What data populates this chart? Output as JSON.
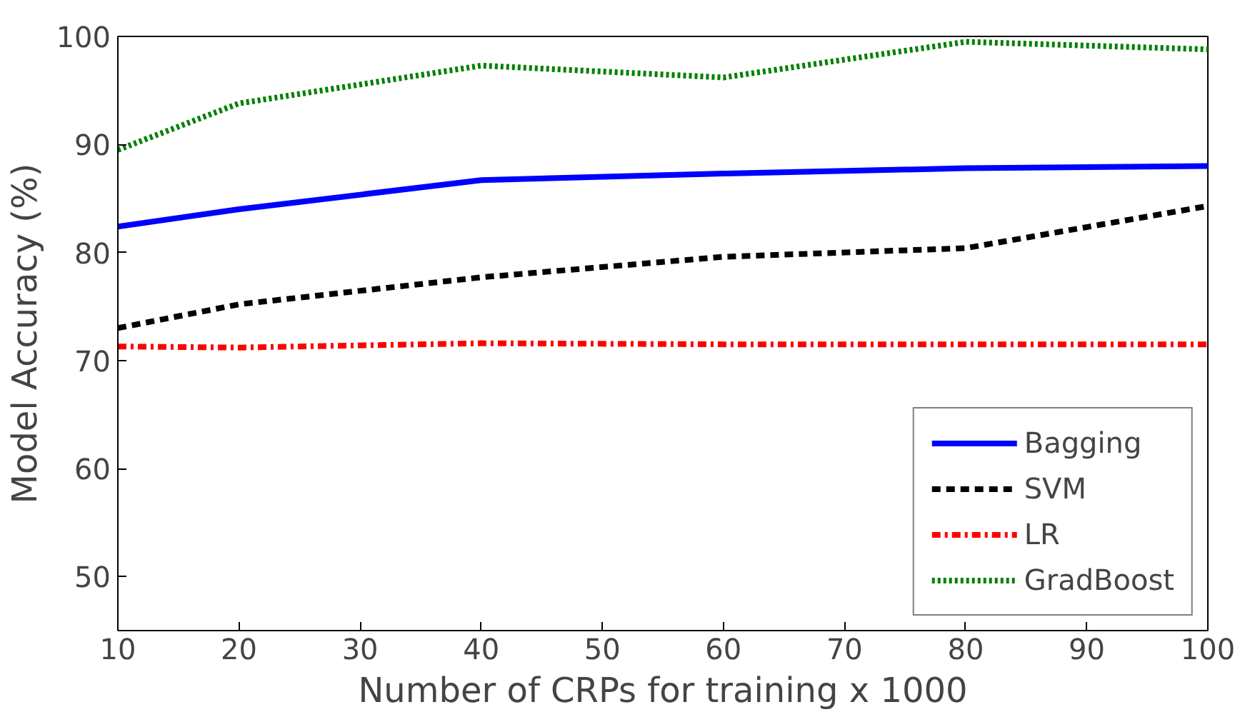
{
  "chart_data": {
    "type": "line",
    "xlabel": "Number of CRPs for training x 1000",
    "ylabel": "Model Accuracy (%)",
    "x": [
      10,
      20,
      40,
      60,
      80,
      100
    ],
    "series": [
      {
        "name": "Bagging",
        "color": "#0000ff",
        "line_style": "solid",
        "values": [
          82.4,
          84.0,
          86.7,
          87.3,
          87.8,
          88.0
        ]
      },
      {
        "name": "SVM",
        "color": "#000000",
        "line_style": "dashed",
        "values": [
          73.0,
          75.2,
          77.7,
          79.6,
          80.4,
          84.3
        ]
      },
      {
        "name": "LR",
        "color": "#ff0000",
        "line_style": "dashdot",
        "values": [
          71.3,
          71.2,
          71.6,
          71.5,
          71.5,
          71.5
        ]
      },
      {
        "name": "GradBoost",
        "color": "#008000",
        "line_style": "dotted",
        "values": [
          89.5,
          93.8,
          97.3,
          96.2,
          99.5,
          98.8
        ]
      }
    ],
    "xlim": [
      10,
      100
    ],
    "ylim": [
      45,
      100
    ],
    "xticks": [
      10,
      20,
      30,
      40,
      50,
      60,
      70,
      80,
      90,
      100
    ],
    "yticks": [
      50,
      60,
      70,
      80,
      90,
      100
    ],
    "grid": false,
    "legend": "bottom right",
    "marker": "none"
  }
}
